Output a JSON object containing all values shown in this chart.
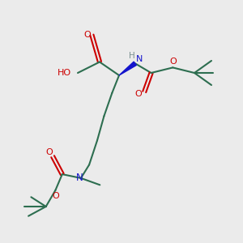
{
  "bg_color": "#ebebeb",
  "bond_color": "#2d6e50",
  "n_color": "#1414cc",
  "o_color": "#cc0000",
  "h_color": "#7a9090",
  "lw": 1.5,
  "fs": 8.0,
  "fig_w": 3.0,
  "fig_h": 3.0,
  "dpi": 100,
  "xlim": [
    0,
    10
  ],
  "ylim": [
    0,
    10
  ]
}
